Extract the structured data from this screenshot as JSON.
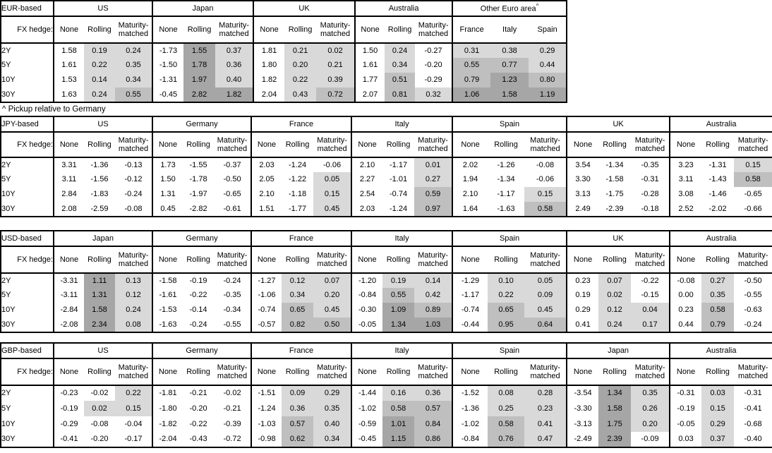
{
  "footnote": "^ Pickup relative to Germany",
  "fx_hedge_label": "FX hedge:",
  "row_labels": [
    "2Y",
    "5Y",
    "10Y",
    "30Y"
  ],
  "conditional_formatting": {
    "applies_to": "all Rolling / Maturity-matched columns and Other-Euro-area pickup columns (never the None columns)",
    "colors": {
      "light": "#d9d9d9",
      "medium": "#bfbfbf",
      "dark": "#a6a6a6"
    },
    "thresholds": {
      "light_min": 0,
      "medium_min": 0.5,
      "dark_min": 1.0
    }
  },
  "chart_data": {
    "type": "table",
    "tables": [
      {
        "label": "EUR-based",
        "groups": [
          {
            "name": "US",
            "cols": [
              "None",
              "Rolling",
              "Maturity-matched"
            ],
            "rows": [
              [
                "1.58",
                "0.19",
                "0.24"
              ],
              [
                "1.61",
                "0.22",
                "0.35"
              ],
              [
                "1.53",
                "0.14",
                "0.34"
              ],
              [
                "1.63",
                "0.24",
                "0.55"
              ]
            ]
          },
          {
            "name": "Japan",
            "cols": [
              "None",
              "Rolling",
              "Maturity-matched"
            ],
            "rows": [
              [
                "-1.73",
                "1.55",
                "0.37"
              ],
              [
                "-1.50",
                "1.78",
                "0.36"
              ],
              [
                "-1.31",
                "1.97",
                "0.40"
              ],
              [
                "-0.45",
                "2.82",
                "1.82"
              ]
            ]
          },
          {
            "name": "UK",
            "cols": [
              "None",
              "Rolling",
              "Maturity-matched"
            ],
            "rows": [
              [
                "1.81",
                "0.21",
                "0.02"
              ],
              [
                "1.80",
                "0.20",
                "0.21"
              ],
              [
                "1.82",
                "0.22",
                "0.39"
              ],
              [
                "2.04",
                "0.43",
                "0.72"
              ]
            ]
          },
          {
            "name": "Australia",
            "cols": [
              "None",
              "Rolling",
              "Maturity-matched"
            ],
            "rows": [
              [
                "1.50",
                "0.24",
                "-0.27"
              ],
              [
                "1.61",
                "0.34",
                "-0.20"
              ],
              [
                "1.77",
                "0.51",
                "-0.29"
              ],
              [
                "2.07",
                "0.81",
                "0.32"
              ]
            ]
          },
          {
            "name": "Other Euro area",
            "sup": "^",
            "cols": [
              "France",
              "Italy",
              "Spain"
            ],
            "rows": [
              [
                "0.31",
                "0.38",
                "0.29"
              ],
              [
                "0.55",
                "0.77",
                "0.44"
              ],
              [
                "0.79",
                "1.23",
                "0.80"
              ],
              [
                "1.06",
                "1.58",
                "1.19"
              ]
            ]
          }
        ]
      },
      {
        "label": "JPY-based",
        "groups": [
          {
            "name": "US",
            "cols": [
              "None",
              "Rolling",
              "Maturity-matched"
            ],
            "rows": [
              [
                "3.31",
                "-1.36",
                "-0.13"
              ],
              [
                "3.11",
                "-1.56",
                "-0.12"
              ],
              [
                "2.84",
                "-1.83",
                "-0.24"
              ],
              [
                "2.08",
                "-2.59",
                "-0.08"
              ]
            ]
          },
          {
            "name": "Germany",
            "cols": [
              "None",
              "Rolling",
              "Maturity-matched"
            ],
            "rows": [
              [
                "1.73",
                "-1.55",
                "-0.37"
              ],
              [
                "1.50",
                "-1.78",
                "-0.50"
              ],
              [
                "1.31",
                "-1.97",
                "-0.65"
              ],
              [
                "0.45",
                "-2.82",
                "-0.61"
              ]
            ]
          },
          {
            "name": "France",
            "cols": [
              "None",
              "Rolling",
              "Maturity-matched"
            ],
            "rows": [
              [
                "2.03",
                "-1.24",
                "-0.06"
              ],
              [
                "2.05",
                "-1.22",
                "0.05"
              ],
              [
                "2.10",
                "-1.18",
                "0.15"
              ],
              [
                "1.51",
                "-1.77",
                "0.45"
              ]
            ]
          },
          {
            "name": "Italy",
            "cols": [
              "None",
              "Rolling",
              "Maturity-matched"
            ],
            "rows": [
              [
                "2.10",
                "-1.17",
                "0.01"
              ],
              [
                "2.27",
                "-1.01",
                "0.27"
              ],
              [
                "2.54",
                "-0.74",
                "0.59"
              ],
              [
                "2.03",
                "-1.24",
                "0.97"
              ]
            ]
          },
          {
            "name": "Spain",
            "cols": [
              "None",
              "Rolling",
              "Maturity-matched"
            ],
            "rows": [
              [
                "2.02",
                "-1.26",
                "-0.08"
              ],
              [
                "1.94",
                "-1.34",
                "-0.06"
              ],
              [
                "2.10",
                "-1.17",
                "0.15"
              ],
              [
                "1.64",
                "-1.63",
                "0.58"
              ]
            ]
          },
          {
            "name": "UK",
            "cols": [
              "None",
              "Rolling",
              "Maturity-matched"
            ],
            "rows": [
              [
                "3.54",
                "-1.34",
                "-0.35"
              ],
              [
                "3.30",
                "-1.58",
                "-0.31"
              ],
              [
                "3.13",
                "-1.75",
                "-0.28"
              ],
              [
                "2.49",
                "-2.39",
                "-0.18"
              ]
            ]
          },
          {
            "name": "Australia",
            "cols": [
              "None",
              "Rolling",
              "Maturity-matched"
            ],
            "rows": [
              [
                "3.23",
                "-1.31",
                "0.15"
              ],
              [
                "3.11",
                "-1.43",
                "0.58"
              ],
              [
                "3.08",
                "-1.46",
                "-0.65"
              ],
              [
                "2.52",
                "-2.02",
                "-0.66"
              ]
            ]
          }
        ]
      },
      {
        "label": "USD-based",
        "groups": [
          {
            "name": "Japan",
            "cols": [
              "None",
              "Rolling",
              "Maturity-matched"
            ],
            "rows": [
              [
                "-3.31",
                "1.11",
                "0.13"
              ],
              [
                "-3.11",
                "1.31",
                "0.12"
              ],
              [
                "-2.84",
                "1.58",
                "0.24"
              ],
              [
                "-2.08",
                "2.34",
                "0.08"
              ]
            ]
          },
          {
            "name": "Germany",
            "cols": [
              "None",
              "Rolling",
              "Maturity-matched"
            ],
            "rows": [
              [
                "-1.58",
                "-0.19",
                "-0.24"
              ],
              [
                "-1.61",
                "-0.22",
                "-0.35"
              ],
              [
                "-1.53",
                "-0.14",
                "-0.34"
              ],
              [
                "-1.63",
                "-0.24",
                "-0.55"
              ]
            ]
          },
          {
            "name": "France",
            "cols": [
              "None",
              "Rolling",
              "Maturity-matched"
            ],
            "rows": [
              [
                "-1.27",
                "0.12",
                "0.07"
              ],
              [
                "-1.06",
                "0.34",
                "0.20"
              ],
              [
                "-0.74",
                "0.65",
                "0.45"
              ],
              [
                "-0.57",
                "0.82",
                "0.50"
              ]
            ]
          },
          {
            "name": "Italy",
            "cols": [
              "None",
              "Rolling",
              "Maturity-matched"
            ],
            "rows": [
              [
                "-1.20",
                "0.19",
                "0.14"
              ],
              [
                "-0.84",
                "0.55",
                "0.42"
              ],
              [
                "-0.30",
                "1.09",
                "0.89"
              ],
              [
                "-0.05",
                "1.34",
                "1.03"
              ]
            ]
          },
          {
            "name": "Spain",
            "cols": [
              "None",
              "Rolling",
              "Maturity-matched"
            ],
            "rows": [
              [
                "-1.29",
                "0.10",
                "0.05"
              ],
              [
                "-1.17",
                "0.22",
                "0.09"
              ],
              [
                "-0.74",
                "0.65",
                "0.45"
              ],
              [
                "-0.44",
                "0.95",
                "0.64"
              ]
            ]
          },
          {
            "name": "UK",
            "cols": [
              "None",
              "Rolling",
              "Maturity-matched"
            ],
            "rows": [
              [
                "0.23",
                "0.07",
                "-0.22"
              ],
              [
                "0.19",
                "0.02",
                "-0.15"
              ],
              [
                "0.29",
                "0.12",
                "0.04"
              ],
              [
                "0.41",
                "0.24",
                "0.17"
              ]
            ]
          },
          {
            "name": "Australia",
            "cols": [
              "None",
              "Rolling",
              "Maturity-matched"
            ],
            "rows": [
              [
                "-0.08",
                "0.27",
                "-0.50"
              ],
              [
                "0.00",
                "0.35",
                "-0.55"
              ],
              [
                "0.23",
                "0.58",
                "-0.63"
              ],
              [
                "0.44",
                "0.79",
                "-0.24"
              ]
            ]
          }
        ]
      },
      {
        "label": "GBP-based",
        "groups": [
          {
            "name": "US",
            "cols": [
              "None",
              "Rolling",
              "Maturity-matched"
            ],
            "rows": [
              [
                "-0.23",
                "-0.02",
                "0.22"
              ],
              [
                "-0.19",
                "0.02",
                "0.15"
              ],
              [
                "-0.29",
                "-0.08",
                "-0.04"
              ],
              [
                "-0.41",
                "-0.20",
                "-0.17"
              ]
            ]
          },
          {
            "name": "Germany",
            "cols": [
              "None",
              "Rolling",
              "Maturity-matched"
            ],
            "rows": [
              [
                "-1.81",
                "-0.21",
                "-0.02"
              ],
              [
                "-1.80",
                "-0.20",
                "-0.21"
              ],
              [
                "-1.82",
                "-0.22",
                "-0.39"
              ],
              [
                "-2.04",
                "-0.43",
                "-0.72"
              ]
            ]
          },
          {
            "name": "France",
            "cols": [
              "None",
              "Rolling",
              "Maturity-matched"
            ],
            "rows": [
              [
                "-1.51",
                "0.09",
                "0.29"
              ],
              [
                "-1.24",
                "0.36",
                "0.35"
              ],
              [
                "-1.03",
                "0.57",
                "0.40"
              ],
              [
                "-0.98",
                "0.62",
                "0.34"
              ]
            ]
          },
          {
            "name": "Italy",
            "cols": [
              "None",
              "Rolling",
              "Maturity-matched"
            ],
            "rows": [
              [
                "-1.44",
                "0.16",
                "0.36"
              ],
              [
                "-1.02",
                "0.58",
                "0.57"
              ],
              [
                "-0.59",
                "1.01",
                "0.84"
              ],
              [
                "-0.45",
                "1.15",
                "0.86"
              ]
            ]
          },
          {
            "name": "Spain",
            "cols": [
              "None",
              "Rolling",
              "Maturity-matched"
            ],
            "rows": [
              [
                "-1.52",
                "0.08",
                "0.28"
              ],
              [
                "-1.36",
                "0.25",
                "0.23"
              ],
              [
                "-1.02",
                "0.58",
                "0.41"
              ],
              [
                "-0.84",
                "0.76",
                "0.47"
              ]
            ]
          },
          {
            "name": "Japan",
            "cols": [
              "None",
              "Rolling",
              "Maturity-matched"
            ],
            "rows": [
              [
                "-3.54",
                "1.34",
                "0.35"
              ],
              [
                "-3.30",
                "1.58",
                "0.26"
              ],
              [
                "-3.13",
                "1.75",
                "0.20"
              ],
              [
                "-2.49",
                "2.39",
                "-0.09"
              ]
            ]
          },
          {
            "name": "Australia",
            "cols": [
              "None",
              "Rolling",
              "Maturity-matched"
            ],
            "rows": [
              [
                "-0.31",
                "0.03",
                "-0.31"
              ],
              [
                "-0.19",
                "0.15",
                "-0.41"
              ],
              [
                "-0.05",
                "0.29",
                "-0.68"
              ],
              [
                "0.03",
                "0.37",
                "-0.40"
              ]
            ]
          }
        ]
      }
    ]
  }
}
